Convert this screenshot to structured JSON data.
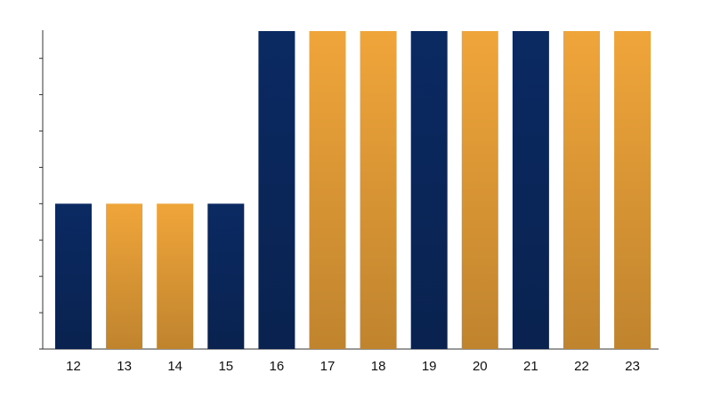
{
  "chart_data": {
    "type": "bar",
    "categories": [
      "12",
      "13",
      "14",
      "15",
      "16",
      "17",
      "18",
      "19",
      "20",
      "21",
      "22",
      "23"
    ],
    "values": [
      4,
      4,
      4,
      4,
      8.75,
      8.75,
      8.75,
      8.75,
      8.75,
      8.75,
      8.75,
      8.75
    ],
    "colors": [
      "#0b2a63",
      "#f0a53a",
      "#f0a53a",
      "#0b2a63",
      "#0b2a63",
      "#f0a53a",
      "#f0a53a",
      "#0b2a63",
      "#f0a53a",
      "#0b2a63",
      "#f0a53a",
      "#f0a53a"
    ],
    "ylim": [
      0,
      8.75
    ],
    "yticks": [
      0,
      1,
      2,
      3,
      4,
      5,
      6,
      7,
      8
    ]
  }
}
